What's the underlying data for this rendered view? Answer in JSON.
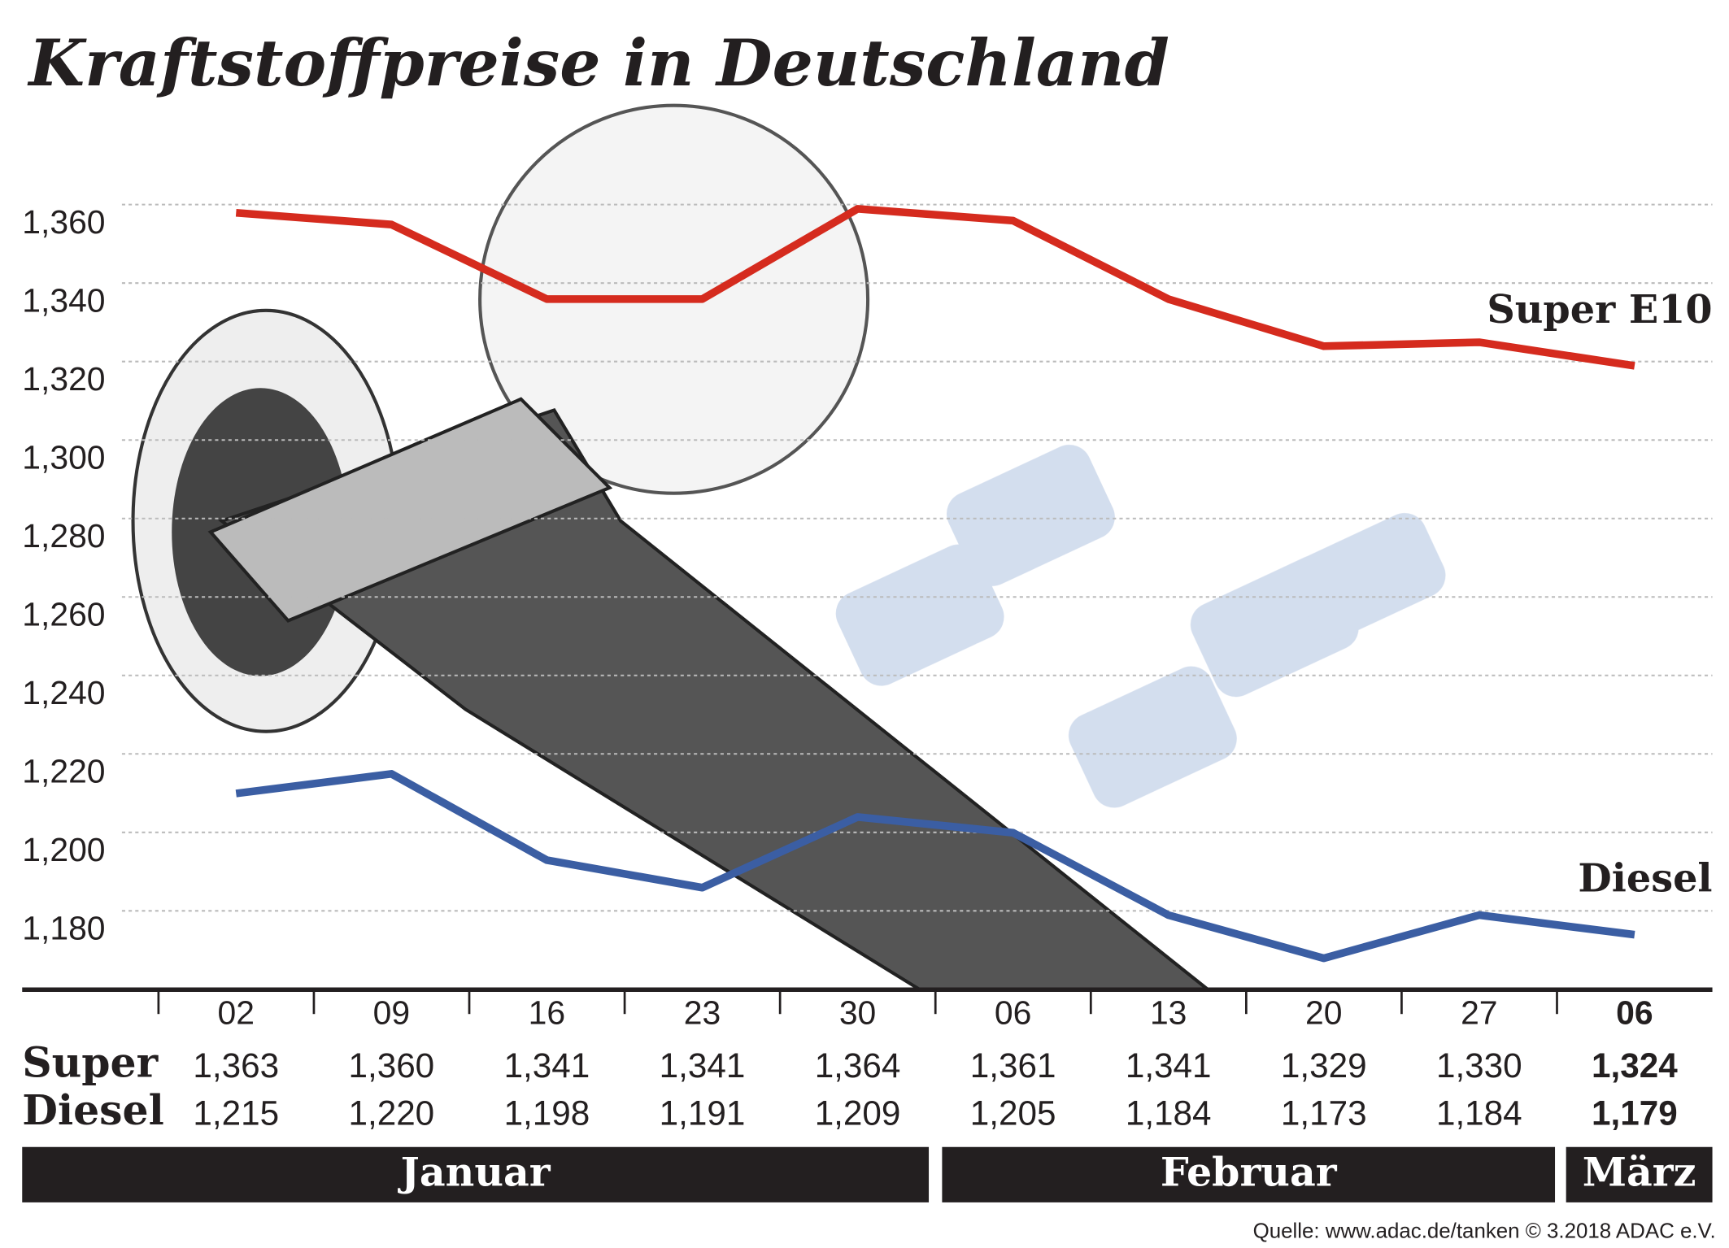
{
  "chart_data": {
    "type": "line",
    "title": "Kraftstoffpreise in Deutschland",
    "categories": [
      "02",
      "09",
      "16",
      "23",
      "30",
      "06",
      "13",
      "20",
      "27",
      "06"
    ],
    "series": [
      {
        "name": "Super E10",
        "color": "#d52b1e",
        "values": [
          1.363,
          1.36,
          1.341,
          1.341,
          1.364,
          1.361,
          1.341,
          1.329,
          1.33,
          1.324
        ],
        "value_labels": [
          "1,363",
          "1,360",
          "1,341",
          "1,341",
          "1,364",
          "1,361",
          "1,341",
          "1,329",
          "1,330",
          "1,324"
        ]
      },
      {
        "name": "Diesel",
        "color": "#3b5ea3",
        "values": [
          1.215,
          1.22,
          1.198,
          1.191,
          1.209,
          1.205,
          1.184,
          1.173,
          1.184,
          1.179
        ],
        "value_labels": [
          "1,215",
          "1,220",
          "1,198",
          "1,191",
          "1,209",
          "1,205",
          "1,184",
          "1,173",
          "1,184",
          "1,179"
        ]
      }
    ],
    "row_labels": [
      "Super",
      "Diesel"
    ],
    "months": [
      "Januar",
      "Februar",
      "März"
    ],
    "ylim": [
      1.165,
      1.372
    ],
    "yticks": [
      {
        "value": 1.18,
        "label": "1,180"
      },
      {
        "value": 1.2,
        "label": "1,200"
      },
      {
        "value": 1.22,
        "label": "1,220"
      },
      {
        "value": 1.24,
        "label": "1,240"
      },
      {
        "value": 1.26,
        "label": "1,260"
      },
      {
        "value": 1.28,
        "label": "1,280"
      },
      {
        "value": 1.3,
        "label": "1,300"
      },
      {
        "value": 1.32,
        "label": "1,320"
      },
      {
        "value": 1.34,
        "label": "1,340"
      },
      {
        "value": 1.36,
        "label": "1,360"
      }
    ],
    "grid": true,
    "source": "Quelle: www.adac.de/tanken   © 3.2018  ADAC e.V."
  }
}
